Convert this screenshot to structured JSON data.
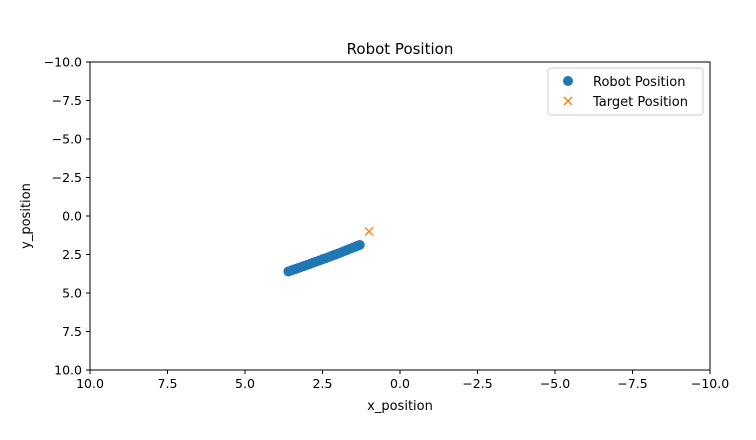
{
  "chart_data": {
    "type": "scatter",
    "title": "Robot Position",
    "xlabel": "x_position",
    "ylabel": "y_position",
    "xlim": [
      10,
      -10
    ],
    "ylim": [
      10,
      -10
    ],
    "xticks": [
      10,
      7.5,
      5,
      2.5,
      0,
      -2.5,
      -5,
      -7.5,
      -10
    ],
    "xtick_labels": [
      "10.0",
      "7.5",
      "5.0",
      "2.5",
      "0.0",
      "−2.5",
      "−5.0",
      "−7.5",
      "−10.0"
    ],
    "yticks": [
      -10,
      -7.5,
      -5,
      -2.5,
      0,
      2.5,
      5,
      7.5,
      10
    ],
    "ytick_labels": [
      "−10.0",
      "−7.5",
      "−5.0",
      "−2.5",
      "0.0",
      "2.5",
      "5.0",
      "7.5",
      "10.0"
    ],
    "grid": false,
    "legend_position": "top-right",
    "series": [
      {
        "name": "Robot Position",
        "marker": "circle",
        "color": "#1f77b4",
        "x": [
          3.6,
          3.5,
          3.4,
          3.3,
          3.2,
          3.1,
          3.0,
          2.9,
          2.8,
          2.7,
          2.6,
          2.5,
          2.4,
          2.3,
          2.2,
          2.1,
          2.0,
          1.9,
          1.8,
          1.7,
          1.6,
          1.5,
          1.4,
          1.3
        ],
        "y": [
          3.6,
          3.53,
          3.46,
          3.39,
          3.32,
          3.25,
          3.18,
          3.11,
          3.03,
          2.96,
          2.89,
          2.81,
          2.74,
          2.67,
          2.59,
          2.51,
          2.44,
          2.36,
          2.28,
          2.2,
          2.12,
          2.04,
          1.96,
          1.88
        ]
      },
      {
        "name": "Target Position",
        "marker": "x",
        "color": "#ff7f0e",
        "x": [
          1.0
        ],
        "y": [
          1.0
        ]
      }
    ]
  }
}
